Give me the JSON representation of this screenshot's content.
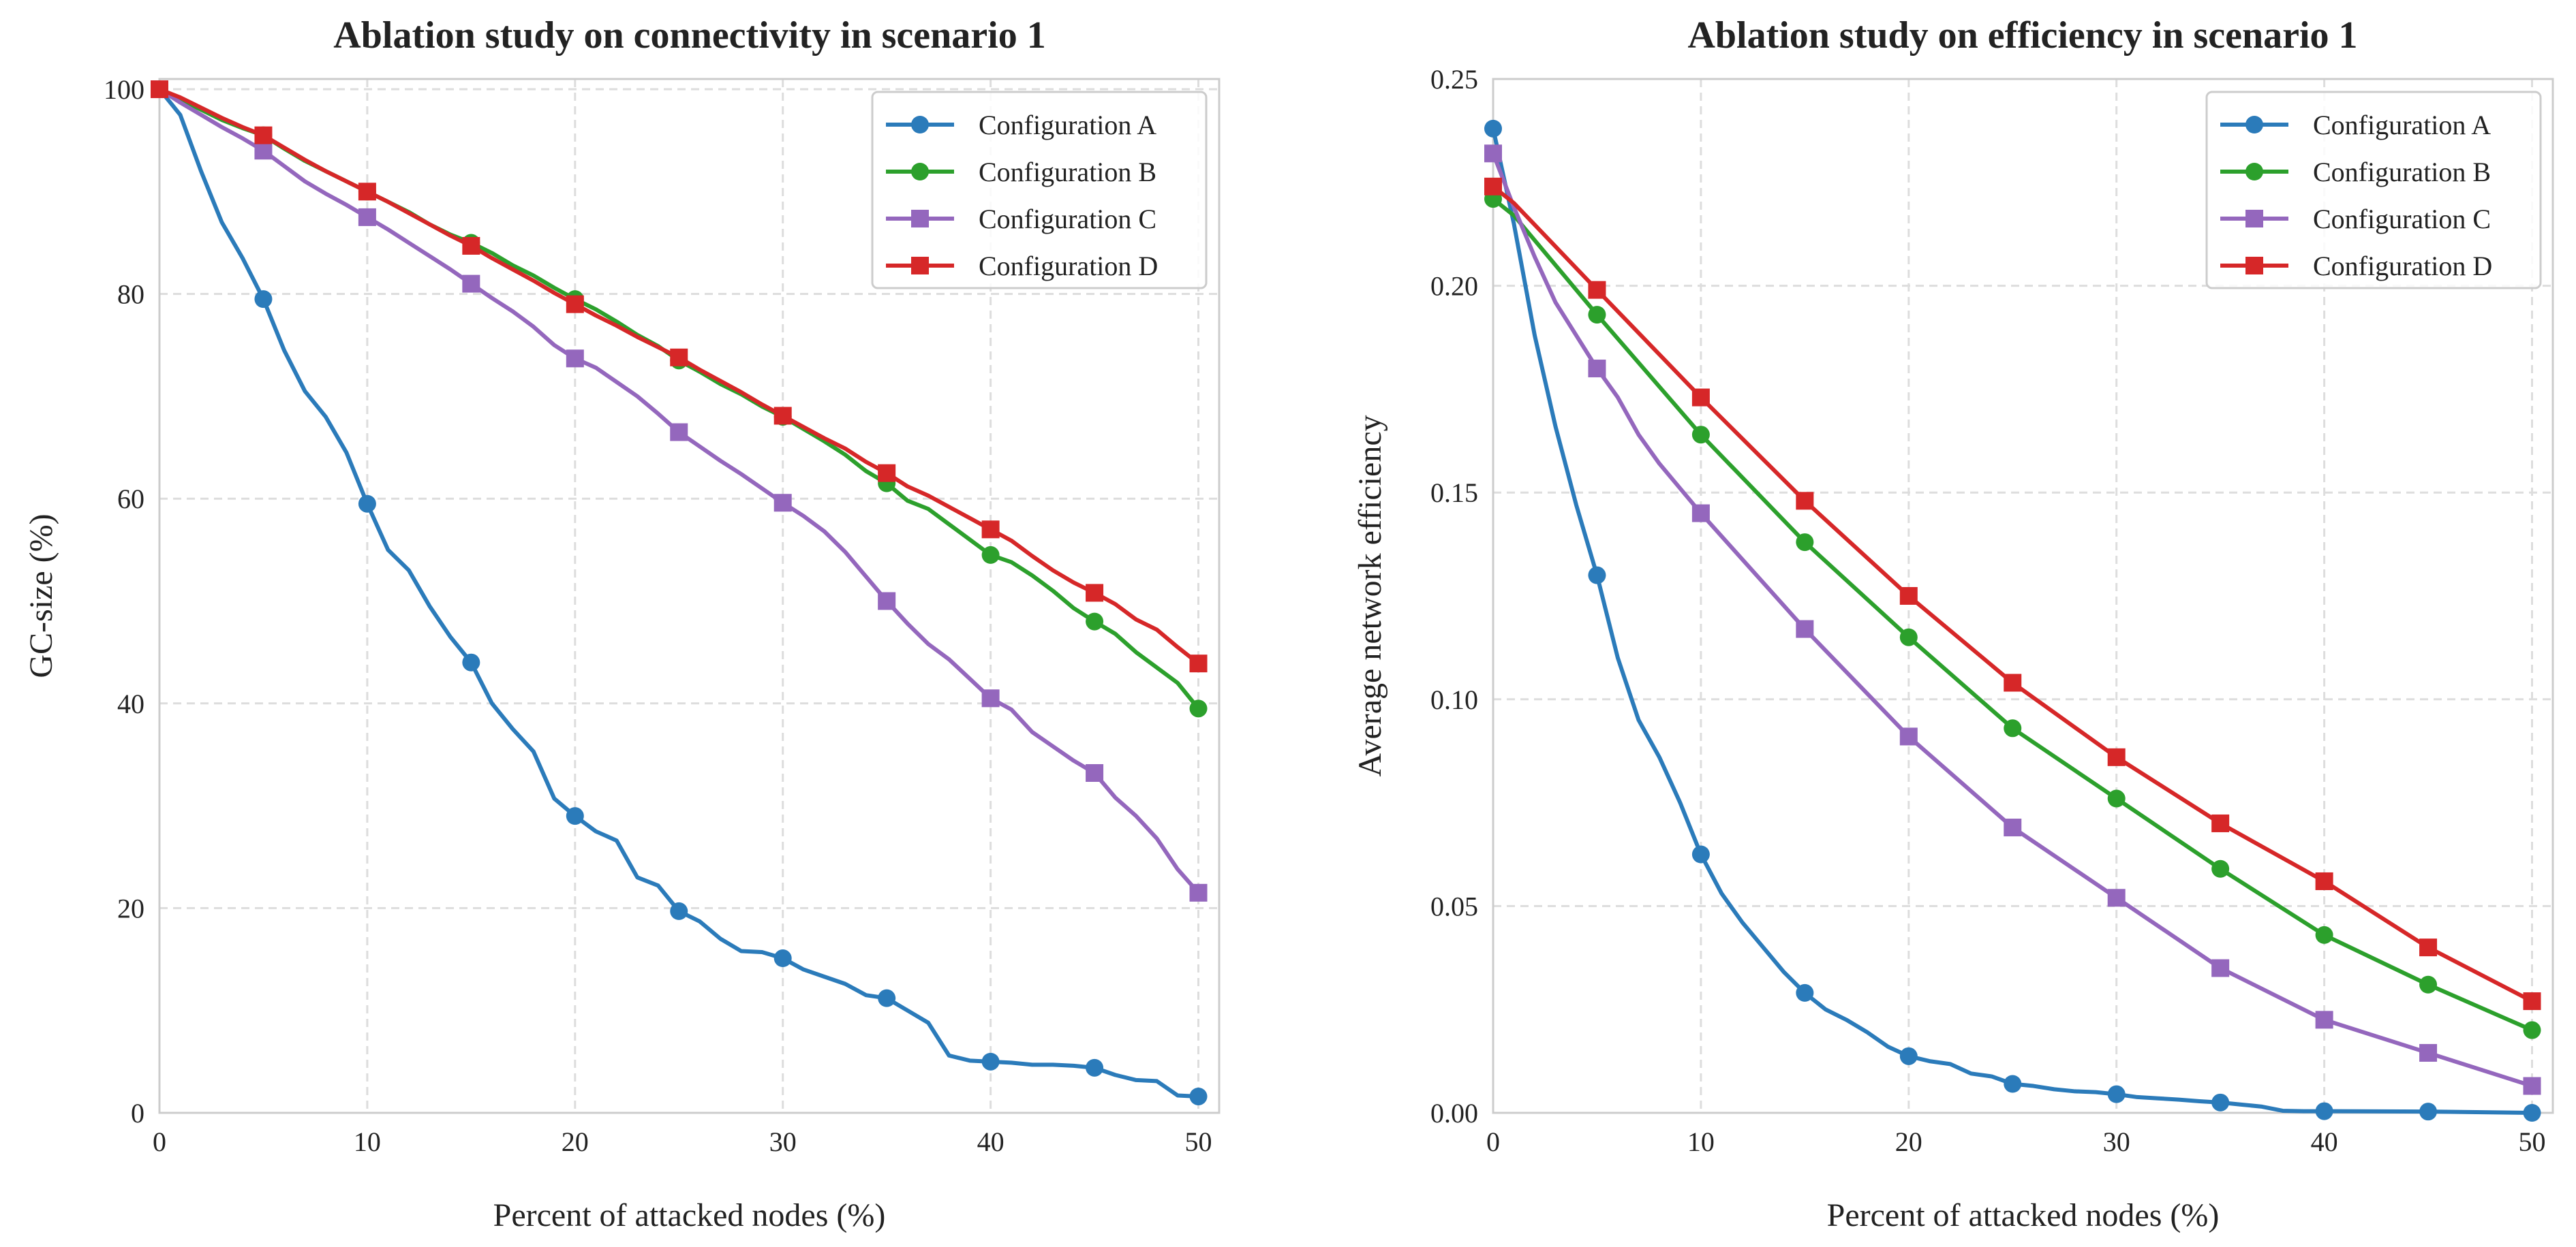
{
  "chart_data": [
    {
      "type": "line",
      "title": "Ablation study on connectivity in scenario 1",
      "xlabel": "Percent of attacked nodes (%)",
      "ylabel": "GC-size (%)",
      "xlim": [
        0,
        51
      ],
      "ylim": [
        0,
        101
      ],
      "xticks": [
        0,
        10,
        20,
        30,
        40,
        50
      ],
      "yticks": [
        0,
        20,
        40,
        60,
        80,
        100
      ],
      "ytick_decimals": 0,
      "grid": true,
      "legend": "top-right",
      "series": [
        {
          "name": "Configuration A",
          "color": "#2b7bba",
          "marker": "circle",
          "x": [
            0,
            1,
            2,
            3,
            4,
            5,
            6,
            7,
            8,
            9,
            10,
            11,
            12,
            13,
            14,
            15,
            16,
            17,
            18,
            19,
            20,
            21,
            22,
            23,
            24,
            25,
            26,
            27,
            28,
            29,
            30,
            31,
            32,
            33,
            34,
            35,
            36,
            37,
            38,
            39,
            40,
            41,
            42,
            43,
            44,
            45,
            46,
            47,
            48,
            49,
            50
          ],
          "y": [
            100,
            97.5,
            92,
            87,
            83.5,
            79.5,
            74.5,
            70.5,
            68,
            64.5,
            59.5,
            55,
            53,
            49.5,
            46.5,
            44,
            40,
            37.5,
            35.3,
            30.7,
            29,
            27.5,
            26.6,
            23,
            22.2,
            19.7,
            18.7,
            17,
            15.8,
            15.7,
            15.1,
            14,
            13.3,
            12.6,
            11.5,
            11.2,
            10,
            8.8,
            5.6,
            5.1,
            5,
            4.9,
            4.7,
            4.7,
            4.6,
            4.4,
            3.7,
            3.2,
            3.1,
            1.7,
            1.6
          ]
        },
        {
          "name": "Configuration B",
          "color": "#2ca02c",
          "marker": "circle",
          "x": [
            0,
            1,
            2,
            3,
            4,
            5,
            6,
            7,
            8,
            9,
            10,
            11,
            12,
            13,
            14,
            15,
            16,
            17,
            18,
            19,
            20,
            21,
            22,
            23,
            24,
            25,
            26,
            27,
            28,
            29,
            30,
            31,
            32,
            33,
            34,
            35,
            36,
            37,
            38,
            39,
            40,
            41,
            42,
            43,
            44,
            45,
            46,
            47,
            48,
            49,
            50
          ],
          "y": [
            100,
            99,
            98,
            97,
            96.2,
            95.5,
            94.2,
            93,
            92,
            91,
            90,
            89,
            88,
            86.8,
            85.8,
            85,
            84,
            82.8,
            81.8,
            80.6,
            79.5,
            78.5,
            77.3,
            76,
            74.9,
            73.5,
            72.4,
            71.2,
            70.2,
            69,
            68,
            66.8,
            65.6,
            64.3,
            62.7,
            61.5,
            59.8,
            59,
            57.5,
            56,
            54.5,
            53.8,
            52.5,
            51,
            49.3,
            48,
            46.8,
            45,
            43.5,
            42,
            39.5
          ]
        },
        {
          "name": "Configuration C",
          "color": "#9467bd",
          "marker": "square",
          "x": [
            0,
            1,
            2,
            3,
            4,
            5,
            6,
            7,
            8,
            9,
            10,
            11,
            12,
            13,
            14,
            15,
            16,
            17,
            18,
            19,
            20,
            21,
            22,
            23,
            24,
            25,
            26,
            27,
            28,
            29,
            30,
            31,
            32,
            33,
            34,
            35,
            36,
            37,
            38,
            39,
            40,
            41,
            42,
            43,
            44,
            45,
            46,
            47,
            48,
            49,
            50
          ],
          "y": [
            100,
            98.7,
            97.5,
            96.3,
            95.2,
            94,
            92.5,
            91,
            89.8,
            88.7,
            87.5,
            86.3,
            85,
            83.7,
            82.4,
            81,
            79.6,
            78.3,
            76.8,
            75,
            73.7,
            72.8,
            71.4,
            70,
            68.3,
            66.5,
            65.1,
            63.7,
            62.4,
            61,
            59.6,
            58.3,
            56.8,
            54.8,
            52.4,
            50,
            47.8,
            45.8,
            44.3,
            42.4,
            40.5,
            39.4,
            37.2,
            35.8,
            34.4,
            33.2,
            30.8,
            29,
            26.8,
            23.8,
            21.5
          ]
        },
        {
          "name": "Configuration D",
          "color": "#d62728",
          "marker": "square",
          "x": [
            0,
            1,
            2,
            3,
            4,
            5,
            6,
            7,
            8,
            9,
            10,
            11,
            12,
            13,
            14,
            15,
            16,
            17,
            18,
            19,
            20,
            21,
            22,
            23,
            24,
            25,
            26,
            27,
            28,
            29,
            30,
            31,
            32,
            33,
            34,
            35,
            36,
            37,
            38,
            39,
            40,
            41,
            42,
            43,
            44,
            45,
            46,
            47,
            48,
            49,
            50
          ],
          "y": [
            100,
            99.2,
            98.2,
            97.2,
            96.3,
            95.5,
            94.3,
            93.1,
            92,
            91,
            90,
            89,
            87.9,
            86.8,
            85.7,
            84.7,
            83.5,
            82.4,
            81.3,
            80.1,
            79,
            77.9,
            76.9,
            75.8,
            74.8,
            73.8,
            72.6,
            71.5,
            70.4,
            69.2,
            68.1,
            67,
            65.9,
            64.9,
            63.6,
            62.5,
            61.2,
            60.3,
            59.2,
            58.1,
            57,
            55.9,
            54.4,
            53,
            51.8,
            50.8,
            49.7,
            48.2,
            47.2,
            45.5,
            43.9
          ]
        }
      ]
    },
    {
      "type": "line",
      "title": "Ablation study on efficiency in scenario 1",
      "xlabel": "Percent of attacked nodes (%)",
      "ylabel": "Average network efficiency",
      "xlim": [
        0,
        51
      ],
      "ylim": [
        0,
        0.25
      ],
      "xticks": [
        0,
        10,
        20,
        30,
        40,
        50
      ],
      "yticks": [
        0,
        0.05,
        0.1,
        0.15,
        0.2,
        0.25
      ],
      "ytick_decimals": 2,
      "grid": true,
      "legend": "top-right",
      "series": [
        {
          "name": "Configuration A",
          "color": "#2b7bba",
          "marker": "circle",
          "x": [
            0,
            1,
            2,
            3,
            4,
            5,
            6,
            7,
            8,
            9,
            10,
            11,
            12,
            13,
            14,
            15,
            16,
            17,
            18,
            19,
            20,
            21,
            22,
            23,
            24,
            25,
            26,
            27,
            28,
            29,
            30,
            31,
            32,
            33,
            34,
            35,
            36,
            37,
            38,
            39,
            40,
            45,
            50
          ],
          "y": [
            0.238,
            0.215,
            0.188,
            0.166,
            0.147,
            0.13,
            0.11,
            0.095,
            0.086,
            0.075,
            0.0625,
            0.053,
            0.046,
            0.04,
            0.034,
            0.029,
            0.025,
            0.0225,
            0.0195,
            0.016,
            0.0137,
            0.0125,
            0.0118,
            0.0095,
            0.0088,
            0.007,
            0.0065,
            0.0057,
            0.0052,
            0.005,
            0.0045,
            0.0038,
            0.0035,
            0.0032,
            0.0028,
            0.0025,
            0.002,
            0.0015,
            0.0005,
            0.0004,
            0.0004,
            0.0003,
            0.0
          ]
        },
        {
          "name": "Configuration B",
          "color": "#2ca02c",
          "marker": "circle",
          "x": [
            0,
            1,
            5,
            10,
            15,
            20,
            25,
            30,
            35,
            40,
            45,
            50
          ],
          "y": [
            0.221,
            0.217,
            0.193,
            0.164,
            0.138,
            0.115,
            0.093,
            0.076,
            0.059,
            0.043,
            0.031,
            0.02
          ]
        },
        {
          "name": "Configuration C",
          "color": "#9467bd",
          "marker": "square",
          "x": [
            0,
            1,
            2,
            3,
            4,
            5,
            6,
            7,
            8,
            9,
            10,
            15,
            20,
            25,
            30,
            35,
            40,
            45,
            50
          ],
          "y": [
            0.232,
            0.219,
            0.207,
            0.196,
            0.188,
            0.18,
            0.173,
            0.164,
            0.157,
            0.151,
            0.145,
            0.117,
            0.091,
            0.069,
            0.052,
            0.035,
            0.0225,
            0.0145,
            0.0065
          ]
        },
        {
          "name": "Configuration D",
          "color": "#d62728",
          "marker": "square",
          "x": [
            0,
            1,
            5,
            10,
            15,
            20,
            25,
            30,
            35,
            40,
            45,
            50
          ],
          "y": [
            0.224,
            0.22,
            0.199,
            0.173,
            0.148,
            0.125,
            0.104,
            0.086,
            0.07,
            0.056,
            0.04,
            0.027
          ]
        }
      ]
    }
  ]
}
